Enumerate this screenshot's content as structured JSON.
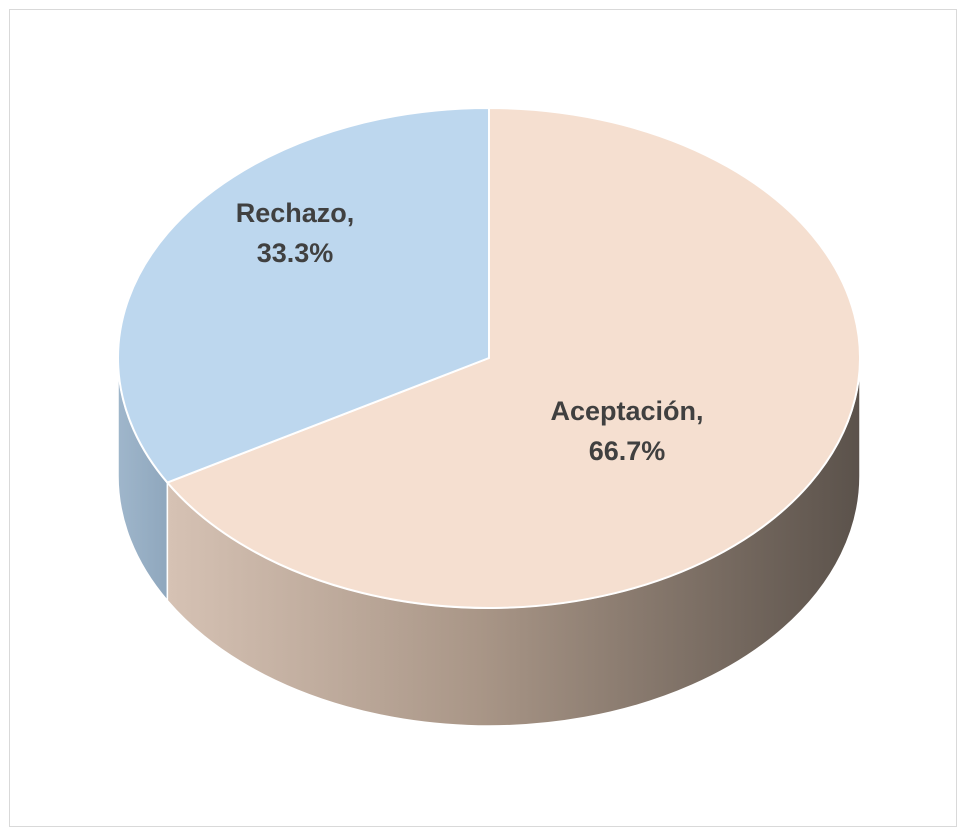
{
  "chart_data": {
    "type": "pie",
    "variant": "3d",
    "slices": [
      {
        "label": "Aceptación",
        "value": 66.7,
        "label_line1": "Aceptación,",
        "label_line2": "66.7%",
        "color": "#f5dfd0"
      },
      {
        "label": "Rechazo",
        "value": 33.3,
        "label_line1": "Rechazo,",
        "label_line2": "33.3%",
        "color": "#bdd7ee"
      }
    ],
    "title": "",
    "legend": "none",
    "data_labels": "category, percentage"
  }
}
